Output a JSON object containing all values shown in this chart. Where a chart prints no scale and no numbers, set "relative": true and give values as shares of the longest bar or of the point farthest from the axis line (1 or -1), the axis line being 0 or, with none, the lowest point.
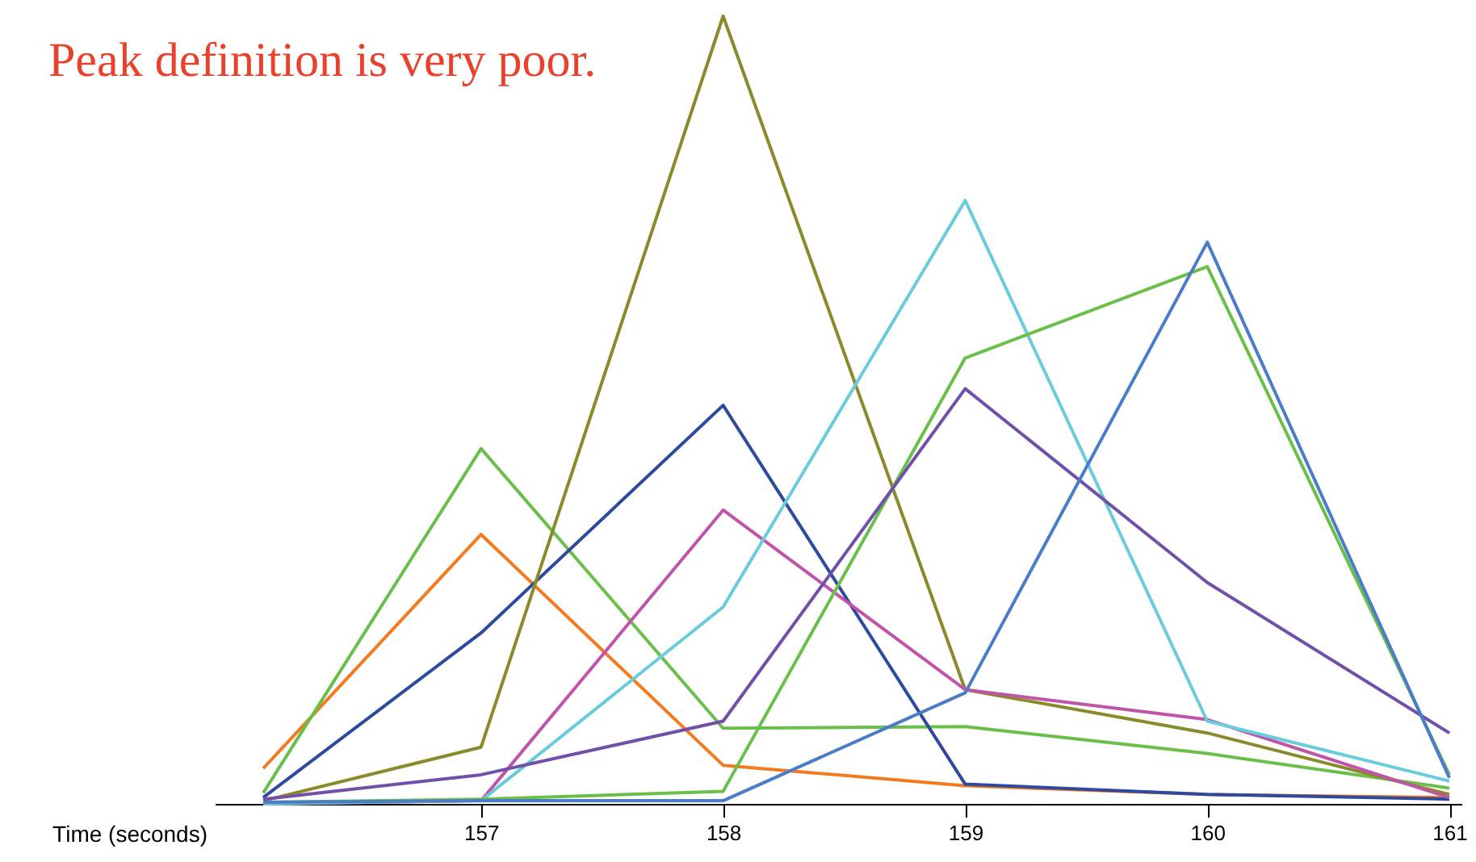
{
  "chart_data": {
    "type": "line",
    "title": "Peak definition is very poor.",
    "xlabel": "Time (seconds)",
    "relative": true,
    "xlim": [
      155.9,
      161.05
    ],
    "xticks": [
      157,
      158,
      159,
      160,
      161
    ],
    "x": [
      156.1,
      157,
      158,
      159,
      160,
      161
    ],
    "series": [
      {
        "color": "#f47a20",
        "values": [
          0.045,
          0.342,
          0.049,
          0.023,
          0.012,
          0.008
        ]
      },
      {
        "color": "#6abf4b",
        "values": [
          0.014,
          0.451,
          0.096,
          0.098,
          0.064,
          0.02
        ]
      },
      {
        "color": "#2e4a9e",
        "values": [
          0.008,
          0.217,
          0.506,
          0.025,
          0.012,
          0.006
        ]
      },
      {
        "color": "#8a8a2a",
        "values": [
          0.004,
          0.072,
          1,
          0.145,
          0.09,
          0.012
        ]
      },
      {
        "color": "#c054a8",
        "values": [
          0,
          0.004,
          0.373,
          0.145,
          0.107,
          0.008
        ]
      },
      {
        "color": "#6acbdc",
        "values": [
          0,
          0.004,
          0.25,
          0.766,
          0.105,
          0.029
        ]
      },
      {
        "color": "#6abf4b",
        "values": [
          0.002,
          0.006,
          0.016,
          0.566,
          0.682,
          0.037
        ]
      },
      {
        "color": "#7050a8",
        "values": [
          0.006,
          0.037,
          0.105,
          0.527,
          0.281,
          0.09
        ]
      },
      {
        "color": "#4a7cc8",
        "values": [
          0.002,
          0.004,
          0.004,
          0.141,
          0.713,
          0.033
        ]
      }
    ]
  }
}
